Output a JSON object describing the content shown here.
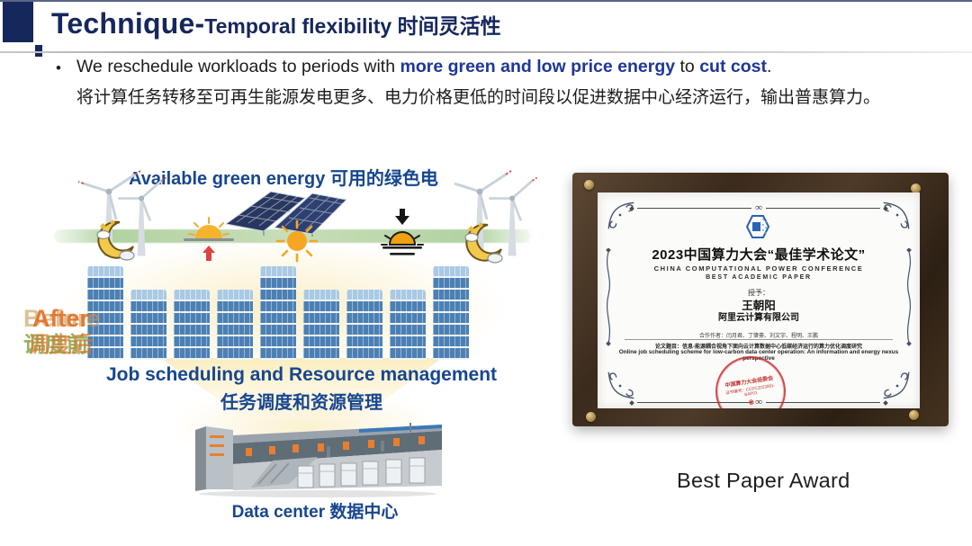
{
  "slide": {
    "header": {
      "title_main": "Technique-",
      "title_sub": "Temporal flexibility 时间灵活性"
    },
    "bullet": {
      "marker": "•",
      "en_prefix": "We reschedule workloads to periods with ",
      "en_highlight1": "more green and low price energy",
      "en_mid": " to ",
      "en_highlight2": "cut cost",
      "en_suffix": ".",
      "zh": "将计算任务转移至可再生能源发电更多、电力价格更低的时间段以促进数据中心经济运行，输出普惠算力。"
    },
    "diagram": {
      "green_energy_label": "Available green energy 可用的绿色电力",
      "before_label": "Before",
      "after_label": "After",
      "before_label_zh": "调度前",
      "after_label_zh": "调度后",
      "scheduling_label_en": "Job scheduling and Resource management",
      "scheduling_label_zh": "任务调度和资源管理",
      "datacenter_label": "Data center 数据中心",
      "building_segments": [
        8,
        6,
        6,
        6,
        8,
        6,
        6,
        6,
        8
      ],
      "icons": [
        "wind-turbine-icon",
        "moon-icon",
        "sunrise-icon",
        "solar-panel-icon",
        "sun-icon",
        "sunset-icon",
        "moon-icon",
        "wind-turbine-icon"
      ]
    },
    "award": {
      "title": "2023中国算力大会“最佳学术论文”",
      "conf_en": "CHINA COMPUTATIONAL POWER CONFERENCE",
      "award_en": "BEST ACADEMIC PAPER",
      "awarded_to_label": "授予：",
      "recipient": "王朝阳",
      "affiliation": "阿里云计算有限公司",
      "coauthors": "合作作者：闫月君、丁肇豪、刘文宇、程明、王鹏",
      "paper_title_zh": "论文题目：信息-能源耦合视角下面向云计算数据中心低碳经济运行的算力优化调度研究",
      "paper_title_en": "Online job scheduling scheme for low-carbon data center operation: An information  and energy nexus perspective",
      "seal_org": "中国算力大会组委会",
      "seal_number": "证书编号：CCPC2023081-BAP01",
      "divider_glyph": "∞",
      "caption": "Best Paper Award"
    },
    "colors": {
      "navy_title": "#16275c",
      "accent_blue": "#1e3799",
      "label_blue": "#17468f",
      "building_blue": "#4c80b4",
      "after_orange": "#e2712a",
      "before_green": "#7fa648",
      "glow_yellow": "#faecba",
      "seal_red": "#c23131",
      "frame_brown": "#3b2b1d"
    }
  }
}
